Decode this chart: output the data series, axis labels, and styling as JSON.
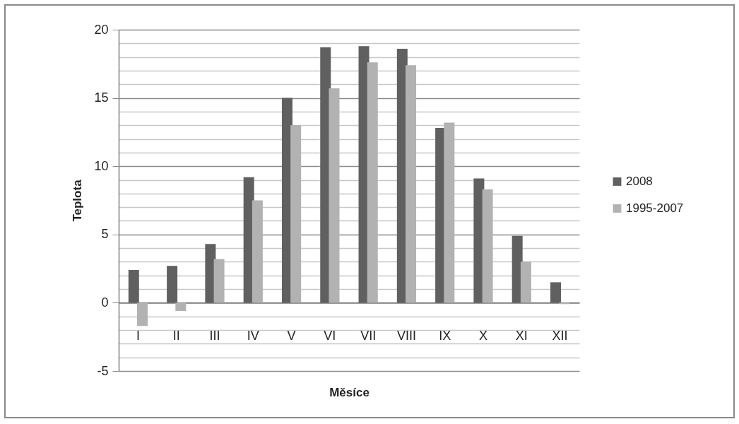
{
  "chart_data": {
    "type": "bar",
    "xlabel": "Měsíce",
    "ylabel": "Teplota",
    "categories": [
      "I",
      "II",
      "III",
      "IV",
      "V",
      "VI",
      "VII",
      "VIII",
      "IX",
      "X",
      "XI",
      "XII"
    ],
    "series": [
      {
        "name": "2008",
        "color": "#606060",
        "values": [
          2.4,
          2.7,
          4.3,
          9.2,
          15.0,
          18.7,
          18.8,
          18.6,
          12.8,
          9.1,
          4.9,
          1.5
        ]
      },
      {
        "name": "1995-2007",
        "color": "#b2b2b2",
        "values": [
          -1.7,
          -0.6,
          3.2,
          7.5,
          13.0,
          15.7,
          17.6,
          17.4,
          13.2,
          8.3,
          3.0,
          -0.1
        ]
      }
    ],
    "ylim": [
      -5,
      20
    ],
    "yticks": [
      -5,
      {
        "value": -4,
        "label": null
      },
      {
        "value": -3,
        "label": null
      },
      {
        "value": -2,
        "label": null
      },
      {
        "value": -1,
        "label": null
      },
      0,
      {
        "value": 1,
        "label": null
      },
      {
        "value": 2,
        "label": null
      },
      {
        "value": 3,
        "label": null
      },
      {
        "value": 4,
        "label": null
      },
      5,
      {
        "value": 6,
        "label": null
      },
      {
        "value": 7,
        "label": null
      },
      {
        "value": 8,
        "label": null
      },
      {
        "value": 9,
        "label": null
      },
      10,
      {
        "value": 11,
        "label": null
      },
      {
        "value": 12,
        "label": null
      },
      {
        "value": 13,
        "label": null
      },
      {
        "value": 14,
        "label": null
      },
      15,
      {
        "value": 16,
        "label": null
      },
      {
        "value": 17,
        "label": null
      },
      {
        "value": 18,
        "label": null
      },
      {
        "value": 19,
        "label": null
      },
      20
    ],
    "grid": "y",
    "legend": "right"
  }
}
